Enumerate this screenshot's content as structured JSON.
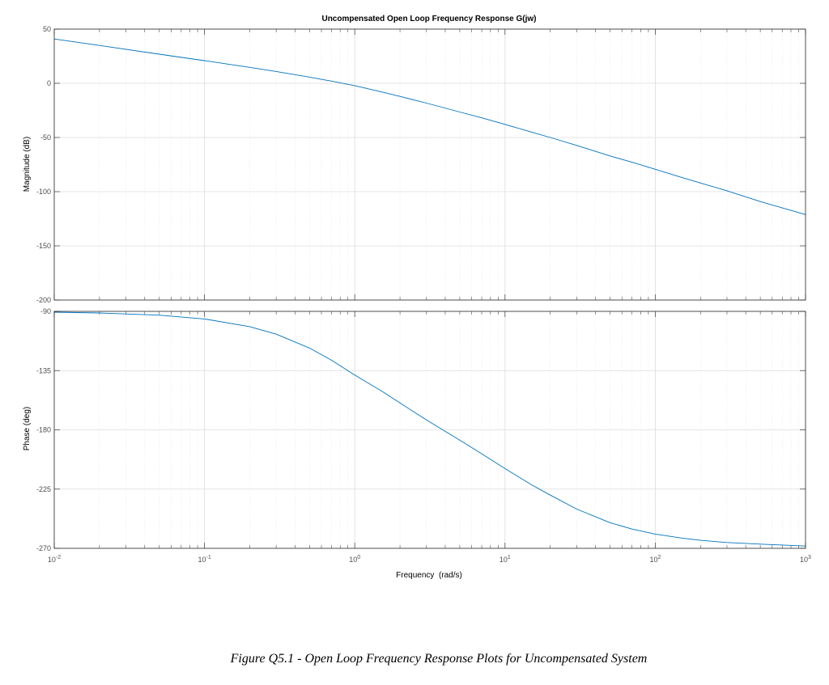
{
  "figure": {
    "caption": "Figure Q5.1 - Open Loop Frequency Response Plots for Uncompensated System"
  },
  "chart_data": {
    "type": "line",
    "title": "Uncompensated Open Loop Frequency Response G(jw)",
    "xlabel": "Frequency  (rad/s)",
    "xscale": "log",
    "xlim": [
      0.01,
      1000
    ],
    "x_ticks": [
      0.01,
      0.1,
      1,
      10,
      100,
      1000
    ],
    "x_tick_labels": [
      {
        "base": "10",
        "exp": "-2"
      },
      {
        "base": "10",
        "exp": "-1"
      },
      {
        "base": "10",
        "exp": "0"
      },
      {
        "base": "10",
        "exp": "1"
      },
      {
        "base": "10",
        "exp": "2"
      },
      {
        "base": "10",
        "exp": "3"
      }
    ],
    "grid": true,
    "line_color": "#0072BD",
    "panels": [
      {
        "id": "magnitude",
        "ylabel": "Magnitude (dB)",
        "ylim": [
          -200,
          50
        ],
        "y_ticks": [
          50,
          0,
          -50,
          -100,
          -150,
          -200
        ],
        "x": [
          0.01,
          0.02,
          0.05,
          0.1,
          0.2,
          0.3,
          0.5,
          0.7,
          1,
          1.5,
          2,
          3,
          5,
          7,
          10,
          15,
          20,
          30,
          50,
          70,
          100,
          150,
          200,
          300,
          500,
          700,
          1000
        ],
        "y": [
          40.9,
          34.9,
          26.9,
          20.9,
          14.7,
          10.9,
          5.7,
          2.0,
          -2.2,
          -7.9,
          -12.1,
          -18.3,
          -26.5,
          -31.9,
          -37.9,
          -45.0,
          -50.0,
          -57.3,
          -67.0,
          -72.8,
          -79.3,
          -86.9,
          -92.0,
          -99.2,
          -109.1,
          -115.0,
          -121.1
        ]
      },
      {
        "id": "phase",
        "ylabel": "Phase (deg)",
        "ylim": [
          -270,
          -90
        ],
        "y_ticks": [
          -90,
          -135,
          -180,
          -225,
          -270
        ],
        "x": [
          0.01,
          0.02,
          0.05,
          0.1,
          0.2,
          0.3,
          0.5,
          0.7,
          1,
          1.5,
          2,
          3,
          5,
          7,
          10,
          15,
          20,
          30,
          50,
          70,
          100,
          150,
          200,
          300,
          500,
          700,
          1000
        ],
        "y": [
          -90.6,
          -91.2,
          -92.9,
          -95.8,
          -101.6,
          -107.3,
          -117.9,
          -127.1,
          -138.4,
          -150.3,
          -159.6,
          -172.5,
          -187.8,
          -198.2,
          -209.4,
          -221.7,
          -229.6,
          -240.2,
          -250.5,
          -255.4,
          -259.2,
          -262.2,
          -263.9,
          -265.6,
          -266.8,
          -267.5,
          -268.3
        ]
      }
    ]
  }
}
